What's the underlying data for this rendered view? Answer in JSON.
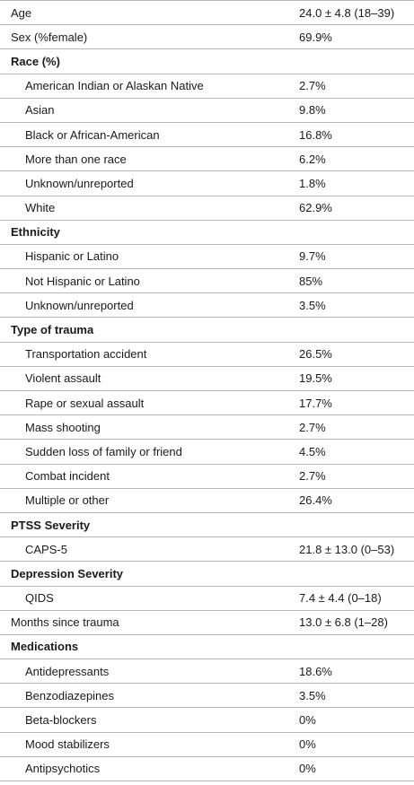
{
  "rows": [
    {
      "type": "item",
      "label": "Age",
      "value": "24.0 ± 4.8 (18–39)"
    },
    {
      "type": "item",
      "label": "Sex (%female)",
      "value": "69.9%"
    },
    {
      "type": "header",
      "label": "Race (%)"
    },
    {
      "type": "sub",
      "label": "American Indian or Alaskan Native",
      "value": "2.7%"
    },
    {
      "type": "sub",
      "label": "Asian",
      "value": "9.8%"
    },
    {
      "type": "sub",
      "label": "Black or African-American",
      "value": "16.8%"
    },
    {
      "type": "sub",
      "label": "More than one race",
      "value": "6.2%"
    },
    {
      "type": "sub",
      "label": "Unknown/unreported",
      "value": "1.8%"
    },
    {
      "type": "sub",
      "label": "White",
      "value": "62.9%"
    },
    {
      "type": "header",
      "label": "Ethnicity"
    },
    {
      "type": "sub",
      "label": "Hispanic or Latino",
      "value": "9.7%"
    },
    {
      "type": "sub",
      "label": "Not Hispanic or Latino",
      "value": "85%"
    },
    {
      "type": "sub",
      "label": "Unknown/unreported",
      "value": "3.5%"
    },
    {
      "type": "header",
      "label": "Type of trauma"
    },
    {
      "type": "sub",
      "label": "Transportation accident",
      "value": "26.5%"
    },
    {
      "type": "sub",
      "label": "Violent assault",
      "value": "19.5%"
    },
    {
      "type": "sub",
      "label": "Rape or sexual assault",
      "value": "17.7%"
    },
    {
      "type": "sub",
      "label": "Mass shooting",
      "value": "2.7%"
    },
    {
      "type": "sub",
      "label": "Sudden loss of family or friend",
      "value": "4.5%"
    },
    {
      "type": "sub",
      "label": "Combat incident",
      "value": "2.7%"
    },
    {
      "type": "sub",
      "label": "Multiple or other",
      "value": "26.4%"
    },
    {
      "type": "header",
      "label": "PTSS Severity"
    },
    {
      "type": "sub",
      "label": "CAPS-5",
      "value": "21.8 ± 13.0 (0–53)"
    },
    {
      "type": "header",
      "label": "Depression Severity"
    },
    {
      "type": "sub",
      "label": "QIDS",
      "value": "7.4 ± 4.4 (0–18)"
    },
    {
      "type": "item",
      "label": "Months since trauma",
      "value": "13.0 ± 6.8 (1–28)"
    },
    {
      "type": "header",
      "label": "Medications"
    },
    {
      "type": "sub",
      "label": "Antidepressants",
      "value": "18.6%"
    },
    {
      "type": "sub",
      "label": "Benzodiazepines",
      "value": "3.5%"
    },
    {
      "type": "sub",
      "label": "Beta-blockers",
      "value": "0%"
    },
    {
      "type": "sub",
      "label": "Mood stabilizers",
      "value": "0%"
    },
    {
      "type": "sub",
      "label": "Antipsychotics",
      "value": "0%"
    }
  ]
}
